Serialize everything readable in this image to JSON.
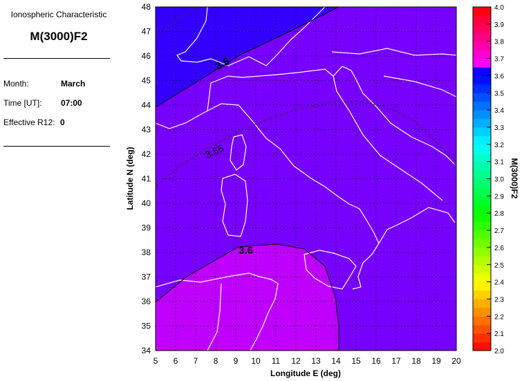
{
  "panel": {
    "subtitle": "Ionospheric Characteristic",
    "title": "M(3000)F2",
    "month_label": "Month:",
    "month": "March",
    "time_label": "Time [UT]:",
    "time": "07:00",
    "r12_label": "Effective R12:",
    "r12": "0"
  },
  "chart_data": {
    "type": "contour-map",
    "xlabel": "Longitude E (deg)",
    "ylabel": "Latitude N (deg)",
    "xlim": [
      5,
      20
    ],
    "ylim": [
      34,
      48
    ],
    "xticks": [
      "5",
      "6",
      "7",
      "8",
      "9",
      "10",
      "11",
      "12",
      "13",
      "14",
      "15",
      "16",
      "17",
      "18",
      "19",
      "20"
    ],
    "yticks": [
      "34",
      "35",
      "36",
      "37",
      "38",
      "39",
      "40",
      "41",
      "42",
      "43",
      "44",
      "45",
      "46",
      "47",
      "48"
    ],
    "grid": true,
    "contours": [
      {
        "level": "3.5",
        "style": "solid"
      },
      {
        "level": "3.55",
        "style": "dashed"
      },
      {
        "level": "3.6",
        "style": "solid"
      }
    ],
    "regions": [
      {
        "range": "<3.5",
        "color": "#3300ff"
      },
      {
        "range": "3.5-3.6",
        "color": "#7700ff"
      },
      {
        "range": ">3.6",
        "color": "#bf00ff"
      }
    ],
    "colorbar": {
      "label": "M(3000)F2",
      "min": 2.0,
      "max": 4.0,
      "ticks": [
        "2.0",
        "2.1",
        "2.2",
        "2.3",
        "2.4",
        "2.5",
        "2.6",
        "2.7",
        "2.8",
        "2.9",
        "3.0",
        "3.1",
        "3.2",
        "3.3",
        "3.4",
        "3.5",
        "3.6",
        "3.7",
        "3.8",
        "3.9",
        "4.0"
      ]
    }
  }
}
